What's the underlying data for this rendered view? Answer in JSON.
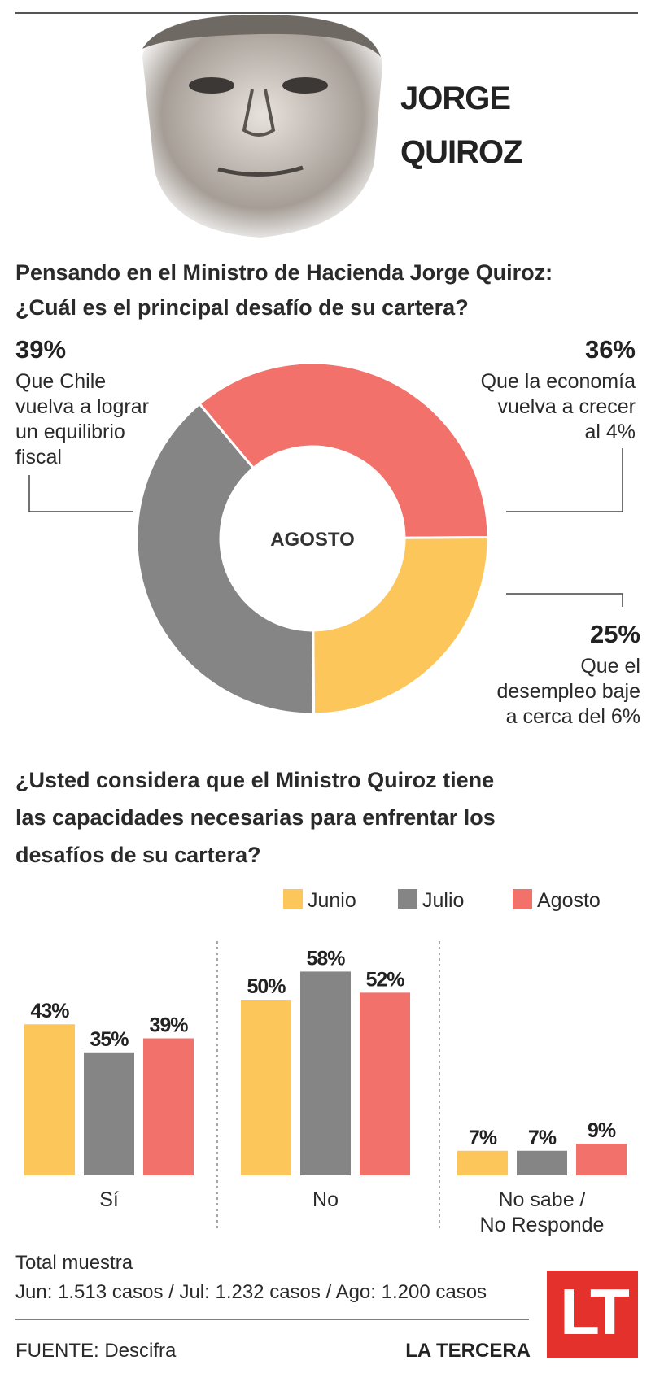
{
  "header": {
    "name": [
      "JORGE",
      "QUIROZ"
    ]
  },
  "chart_data": [
    {
      "type": "donut",
      "title": [
        "Pensando en el Ministro de Hacienda Jorge Quiroz:",
        "¿Cuál es el principal desafío de su cartera?"
      ],
      "center_label": "AGOSTO",
      "categories": [
        [
          "Que la economía",
          "vuelva a crecer",
          "al 4%"
        ],
        [
          "Que el",
          "desempleo baje",
          "a cerca del 6%"
        ],
        [
          "Que Chile",
          "vuelva a lograr",
          "un equilibrio",
          "fiscal"
        ]
      ],
      "values": [
        36,
        25,
        39
      ],
      "value_labels": [
        "36%",
        "25%",
        "39%"
      ],
      "colors": [
        "#f2716b",
        "#fcc65a",
        "#858585"
      ]
    },
    {
      "type": "bar",
      "title": [
        "¿Usted considera que el Ministro Quiroz tiene",
        "las capacidades necesarias para enfrentar los",
        "desafíos de su cartera?"
      ],
      "categories": [
        [
          "Sí"
        ],
        [
          "No"
        ],
        [
          "No sabe /",
          "No Responde"
        ]
      ],
      "series": [
        {
          "name": "Junio",
          "color": "#fcc65a",
          "values": [
            43,
            50,
            7
          ],
          "value_labels": [
            "43%",
            "50%",
            "7%"
          ]
        },
        {
          "name": "Julio",
          "color": "#858585",
          "values": [
            35,
            58,
            7
          ],
          "value_labels": [
            "35%",
            "58%",
            "7%"
          ]
        },
        {
          "name": "Agosto",
          "color": "#f2716b",
          "values": [
            39,
            52,
            9
          ],
          "value_labels": [
            "39%",
            "52%",
            "9%"
          ]
        }
      ]
    }
  ],
  "footer": {
    "sample_title": "Total muestra",
    "sample": "Jun: 1.513 casos / Jul: 1.232 casos / Ago: 1.200 casos",
    "source": "FUENTE: Descifra",
    "brand": "LA TERCERA",
    "logo": "LT"
  }
}
